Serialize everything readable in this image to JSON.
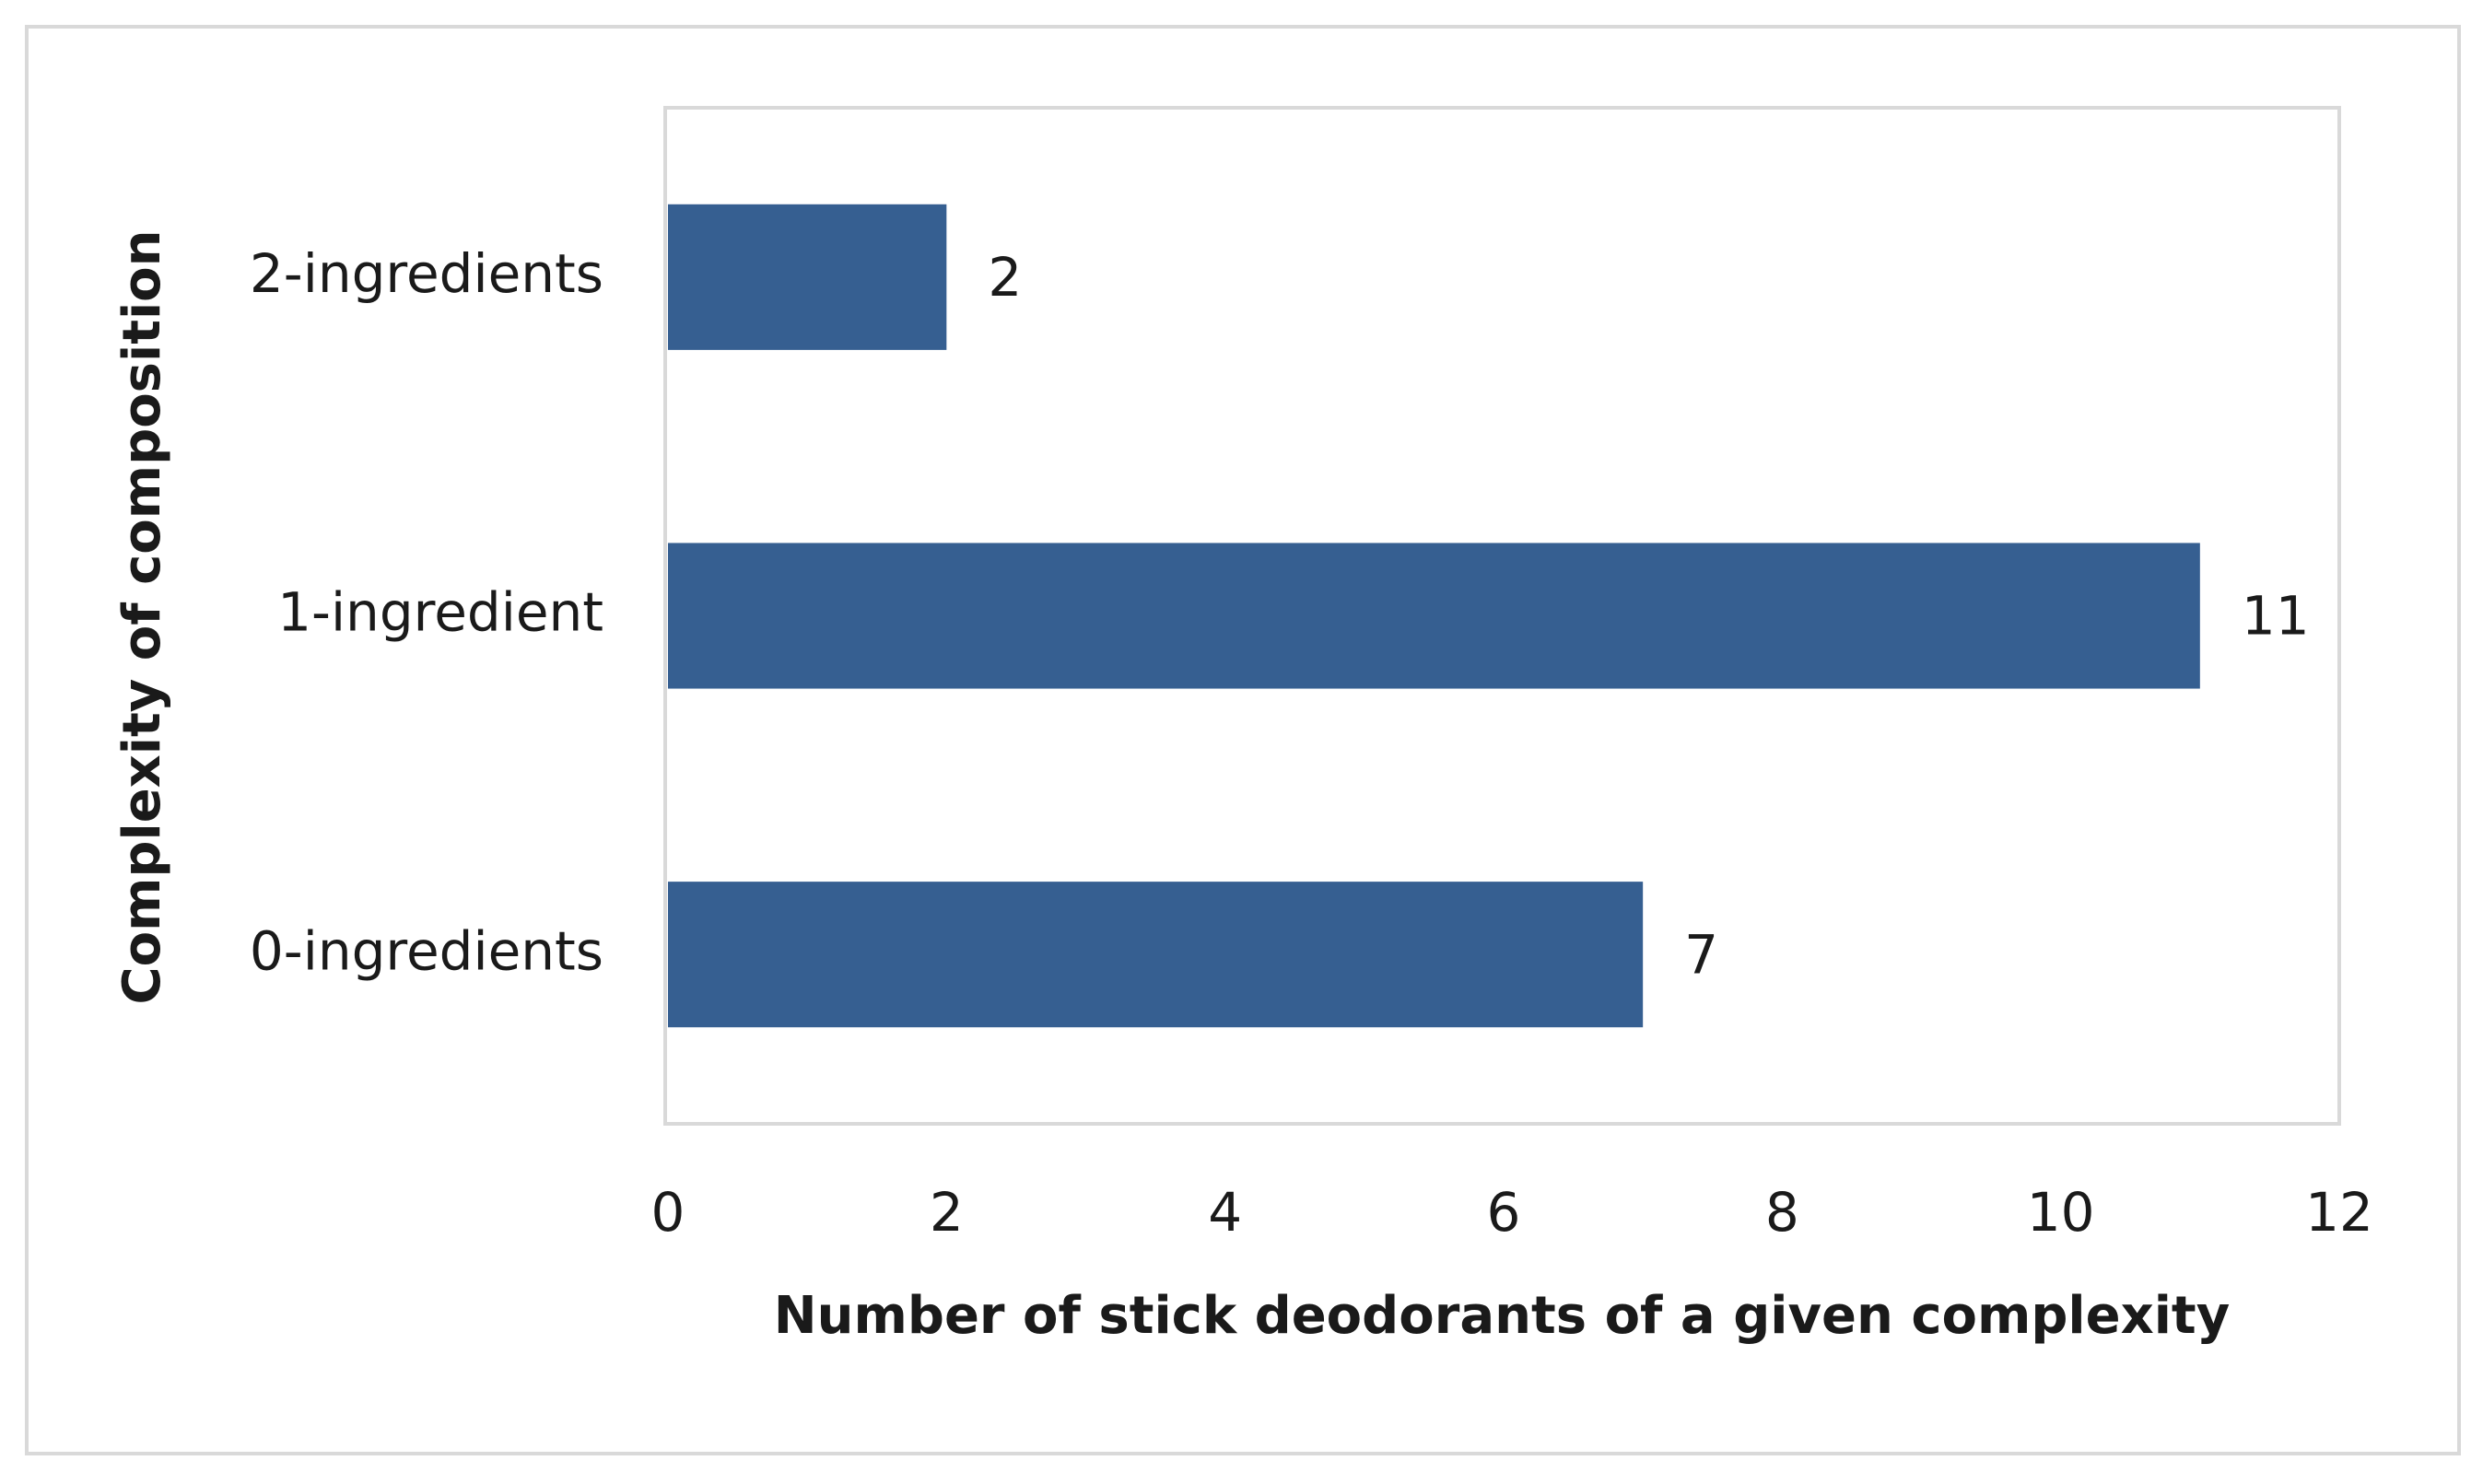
{
  "chart_data": {
    "type": "barh",
    "categories": [
      "0-ingredients",
      "1-ingredient",
      "2-ingredients"
    ],
    "values": [
      7,
      11,
      2
    ],
    "color": "#365f91",
    "xlabel": "Number of stick deodorants of a given complexity",
    "ylabel": "Complexity of composition",
    "xlim": [
      0,
      12
    ],
    "xticks": [
      0,
      2,
      4,
      6,
      8,
      10,
      12
    ],
    "grid": false
  }
}
